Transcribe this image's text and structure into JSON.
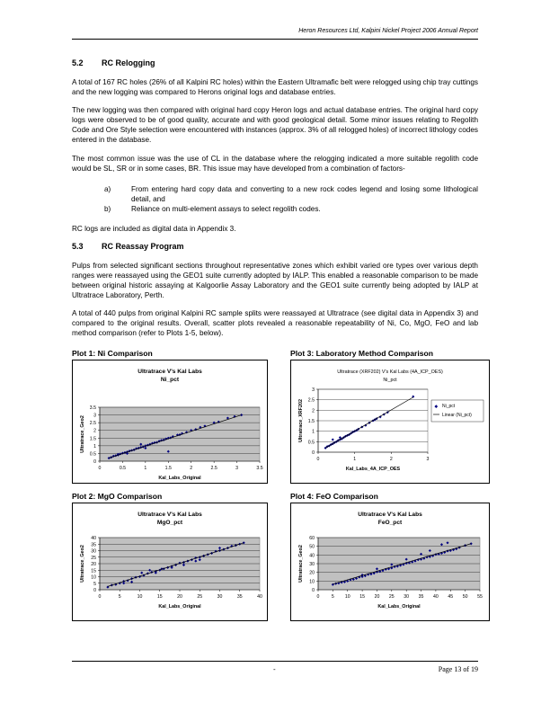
{
  "header": {
    "text": "Heron Resources Ltd, Kalpini Nickel Project 2006 Annual Report"
  },
  "s52": {
    "num": "5.2",
    "title": "RC Relogging",
    "p1": "A total of 167 RC holes (26% of all Kalpini RC holes) within the Eastern Ultramafic belt were relogged using chip tray cuttings and the new logging was compared to Herons original logs and database entries.",
    "p2": "The new logging was then compared with original hard copy Heron logs and actual database entries.  The original hard copy logs were observed to be of good quality, accurate and with good geological detail.  Some minor issues relating to Regolith Code and Ore Style selection were encountered with instances (approx. 3% of all relogged holes) of incorrect lithology codes entered in the database.",
    "p3": "The most common issue was the use of CL in the database where the relogging indicated a more suitable regolith code would be SL, SR or in some cases, BR.  This issue may have developed from a combination of factors-",
    "item_a_label": "a)",
    "item_a": "From entering hard copy data and converting to a new rock codes legend and losing some lithological detail, and",
    "item_b_label": "b)",
    "item_b": "Reliance on multi-element assays to select regolith codes.",
    "p4": "RC logs are included as digital data in Appendix 3."
  },
  "s53": {
    "num": "5.3",
    "title": "RC Reassay Program",
    "p1": "Pulps from selected significant sections throughout representative zones which exhibit varied ore types over various depth ranges were reassayed using the GEO1 suite currently adopted by IALP.  This enabled a reasonable comparison to be made between original historic assaying at Kalgoorlie Assay Laboratory and the GEO1 suite currently being adopted by IALP at Ultratrace Laboratory, Perth.",
    "p2": "A total of 440 pulps from original Kalpini RC sample splits were reassayed at Ultratrace (see digital data in Appendix 3) and compared to the original results.  Overall, scatter plots revealed a reasonable repeatability of Ni, Co, MgO, FeO and lab method comparison (refer to Plots 1-5, below)."
  },
  "captions": {
    "plot1": "Plot 1:  Ni Comparison",
    "plot3": "Plot 3:  Laboratory Method Comparison",
    "plot2": "Plot 2:  MgO Comparison",
    "plot4": "Plot 4: FeO Comparison"
  },
  "footer": {
    "page": "Page 13 of 19",
    "dot": "-"
  },
  "chart_data": [
    {
      "id": "plot1",
      "type": "scatter",
      "title": "Ultratrace V's Kal Labs",
      "subtitle": "Ni_pct",
      "xlabel": "Kal_Labs_Original",
      "ylabel": "Ultratrace_Geo2",
      "xlim": [
        0,
        3.5
      ],
      "ylim": [
        0,
        3.5
      ],
      "xticks": [
        "0",
        "0.5",
        "1",
        "1.5",
        "2",
        "2.5",
        "3",
        "3.5"
      ],
      "yticks": [
        "0",
        "0.5",
        "1",
        "1.5",
        "2",
        "2.5",
        "3",
        "3.5"
      ],
      "marker_color": "#000080",
      "plot_bg": "#c0c0c0",
      "trendline": [
        [
          0.2,
          0.2
        ],
        [
          3.1,
          3.0
        ]
      ],
      "x": [
        0.2,
        0.25,
        0.3,
        0.35,
        0.4,
        0.45,
        0.5,
        0.55,
        0.6,
        0.65,
        0.7,
        0.75,
        0.8,
        0.85,
        0.9,
        0.95,
        1.0,
        1.05,
        1.1,
        1.15,
        1.2,
        1.25,
        1.3,
        1.35,
        1.4,
        1.45,
        1.5,
        1.55,
        1.6,
        1.7,
        1.75,
        1.8,
        1.9,
        2.0,
        2.1,
        2.2,
        2.3,
        2.5,
        2.6,
        2.8,
        2.95,
        3.1,
        1.5,
        0.9,
        1.0,
        0.6,
        0.4
      ],
      "y": [
        0.2,
        0.25,
        0.33,
        0.36,
        0.4,
        0.47,
        0.52,
        0.56,
        0.6,
        0.66,
        0.7,
        0.74,
        0.82,
        0.85,
        0.9,
        0.93,
        1.0,
        1.04,
        1.1,
        1.16,
        1.2,
        1.22,
        1.3,
        1.35,
        1.38,
        1.45,
        1.5,
        1.52,
        1.6,
        1.7,
        1.72,
        1.8,
        1.88,
        2.0,
        2.06,
        2.2,
        2.28,
        2.5,
        2.55,
        2.8,
        2.9,
        3.0,
        0.63,
        1.1,
        0.85,
        0.5,
        0.45
      ]
    },
    {
      "id": "plot3",
      "type": "scatter",
      "title": "Ultratrace (XRF202) V's Kal Labs (4A_ICP_OES)",
      "subtitle": "Ni_pct",
      "xlabel": "Kal_Labs_4A_ICP_OES",
      "ylabel": "Ultratrace_XRF202",
      "xlim": [
        0,
        3
      ],
      "ylim": [
        0,
        3
      ],
      "xticks": [
        "0",
        "1",
        "2",
        "3"
      ],
      "yticks": [
        "0",
        "0.5",
        "1",
        "1.5",
        "2",
        "2.5",
        "3"
      ],
      "marker_color": "#000080",
      "plot_bg": "#ffffff",
      "trendline": [
        [
          0.2,
          0.2
        ],
        [
          2.6,
          2.62
        ]
      ],
      "legend": [
        "Ni_pct",
        "Linear (Ni_pct)"
      ],
      "x": [
        0.2,
        0.25,
        0.3,
        0.35,
        0.4,
        0.45,
        0.5,
        0.55,
        0.6,
        0.65,
        0.7,
        0.75,
        0.8,
        0.85,
        0.9,
        0.95,
        1.0,
        1.05,
        1.1,
        1.2,
        1.3,
        1.4,
        1.5,
        1.55,
        1.6,
        1.7,
        1.8,
        1.9,
        2.6,
        0.4,
        0.6
      ],
      "y": [
        0.2,
        0.27,
        0.3,
        0.36,
        0.4,
        0.46,
        0.5,
        0.56,
        0.6,
        0.64,
        0.7,
        0.76,
        0.8,
        0.84,
        0.9,
        0.96,
        1.0,
        1.04,
        1.1,
        1.2,
        1.28,
        1.4,
        1.5,
        1.55,
        1.6,
        1.68,
        1.8,
        1.9,
        2.65,
        0.6,
        0.7
      ]
    },
    {
      "id": "plot2",
      "type": "scatter",
      "title": "Ultratrace V's Kal Labs",
      "subtitle": "MgO_pct",
      "xlabel": "Kal_Labs_Original",
      "ylabel": "Ultratrace_Geo2",
      "xlim": [
        0,
        40
      ],
      "ylim": [
        0,
        40
      ],
      "xticks": [
        "0",
        "5",
        "10",
        "15",
        "20",
        "25",
        "30",
        "35",
        "40"
      ],
      "yticks": [
        "0",
        "5",
        "10",
        "15",
        "20",
        "25",
        "30",
        "35",
        "40"
      ],
      "marker_color": "#000080",
      "plot_bg": "#c0c0c0",
      "trendline": [
        [
          2,
          2.5
        ],
        [
          36,
          36
        ]
      ],
      "x": [
        2,
        3,
        4,
        5,
        6,
        7,
        8,
        9,
        10,
        11,
        12,
        13,
        14,
        15,
        16,
        17,
        18,
        19,
        20,
        21,
        22,
        23,
        24,
        25,
        26,
        27,
        28,
        29,
        30,
        31,
        32,
        33,
        34,
        35,
        36,
        10.5,
        12.5,
        15.5,
        18,
        21,
        25,
        30,
        8,
        6,
        14,
        24
      ],
      "y": [
        2,
        3.5,
        4,
        5,
        6.5,
        7,
        8.5,
        9.5,
        10,
        11,
        12.5,
        13.5,
        14,
        15,
        16,
        17,
        18,
        19,
        20.5,
        21,
        22,
        23,
        24.5,
        25,
        26,
        27,
        28,
        29.5,
        30,
        31,
        32,
        33.5,
        34,
        35,
        36,
        13,
        15,
        16,
        17,
        19,
        23,
        32,
        6,
        5,
        13,
        22
      ]
    },
    {
      "id": "plot4",
      "type": "scatter",
      "title": "Ultratrace V's Kal Labs",
      "subtitle": "FeO_pct",
      "xlabel": "Kal_Labs_Original",
      "ylabel": "Ultratrace_Geo2",
      "xlim": [
        0,
        55
      ],
      "ylim": [
        0,
        60
      ],
      "xticks": [
        "0",
        "5",
        "10",
        "15",
        "20",
        "25",
        "30",
        "35",
        "40",
        "45",
        "50",
        "55"
      ],
      "yticks": [
        "0",
        "10",
        "20",
        "30",
        "40",
        "50",
        "60"
      ],
      "marker_color": "#000080",
      "plot_bg": "#c0c0c0",
      "trendline": [
        [
          5,
          6.5
        ],
        [
          52,
          53
        ]
      ],
      "x": [
        5,
        6,
        7,
        8,
        9,
        10,
        11,
        12,
        13,
        14,
        15,
        16,
        17,
        18,
        19,
        20,
        21,
        22,
        23,
        24,
        25,
        26,
        27,
        28,
        29,
        30,
        31,
        32,
        33,
        34,
        35,
        36,
        37,
        38,
        39,
        40,
        41,
        42,
        43,
        44,
        45,
        46,
        47,
        48,
        50,
        52,
        35,
        38,
        42,
        44,
        30,
        25,
        20,
        15
      ],
      "y": [
        6,
        7,
        7.5,
        8.5,
        9,
        10,
        11.5,
        12,
        13,
        14.5,
        15,
        16,
        17.5,
        18,
        19,
        20.5,
        21,
        22,
        23.5,
        24,
        25,
        26.5,
        27,
        28,
        29,
        30.5,
        31,
        32,
        33,
        34.5,
        35,
        36,
        37.5,
        38,
        39,
        40.5,
        41,
        42,
        43,
        44.5,
        45,
        46,
        47,
        48.5,
        51,
        53,
        41,
        45,
        52,
        54,
        35,
        29,
        24,
        17
      ]
    }
  ]
}
